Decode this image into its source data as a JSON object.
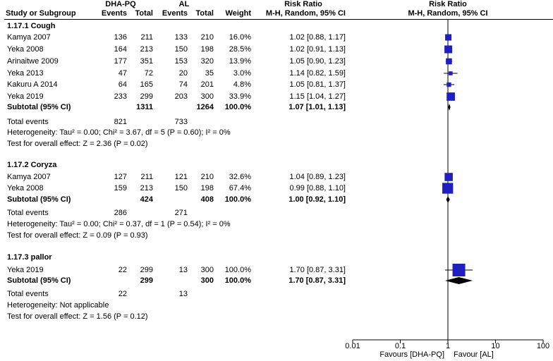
{
  "header": {
    "group1": "DHA-PQ",
    "group2": "AL",
    "rr_title": "Risk Ratio",
    "rr_plot_title": "Risk Ratio",
    "study_col": "Study or Subgroup",
    "events1": "Events",
    "total1": "Total",
    "events2": "Events",
    "total2": "Total",
    "weight": "Weight",
    "method": "M-H, Random, 95% CI",
    "method_plot": "M-H, Random, 95% CI"
  },
  "subgroups": [
    {
      "title": "1.17.1 Cough",
      "studies": [
        {
          "name": "Kamya 2007",
          "e1": "136",
          "t1": "211",
          "e2": "133",
          "t2": "210",
          "weight": "16.0%",
          "ci": "1.02 [0.88, 1.17]"
        },
        {
          "name": "Yeka 2008",
          "e1": "164",
          "t1": "213",
          "e2": "150",
          "t2": "198",
          "weight": "28.5%",
          "ci": "1.02 [0.91, 1.13]"
        },
        {
          "name": "Arinaitwe 2009",
          "e1": "177",
          "t1": "351",
          "e2": "153",
          "t2": "320",
          "weight": "13.9%",
          "ci": "1.05 [0.90, 1.23]"
        },
        {
          "name": "Yeka 2013",
          "e1": "47",
          "t1": "72",
          "e2": "20",
          "t2": "35",
          "weight": "3.0%",
          "ci": "1.14 [0.82, 1.59]"
        },
        {
          "name": "Kakuru A 2014",
          "e1": "64",
          "t1": "165",
          "e2": "74",
          "t2": "201",
          "weight": "4.8%",
          "ci": "1.05 [0.81, 1.37]"
        },
        {
          "name": "Yeka 2019",
          "e1": "233",
          "t1": "299",
          "e2": "203",
          "t2": "300",
          "weight": "33.9%",
          "ci": "1.15 [1.04, 1.27]"
        }
      ],
      "subtotal": {
        "label": "Subtotal (95% CI)",
        "t1": "1311",
        "t2": "1264",
        "weight": "100.0%",
        "ci": "1.07 [1.01, 1.13]"
      },
      "total_events": {
        "label": "Total events",
        "e1": "821",
        "e2": "733"
      },
      "heterogeneity": "Heterogeneity: Tau² = 0.00; Chi² = 3.67, df = 5 (P = 0.60); I² = 0%",
      "overall": "Test for overall effect: Z = 2.36 (P = 0.02)"
    },
    {
      "title": "1.17.2 Coryza",
      "studies": [
        {
          "name": "Kamya 2007",
          "e1": "127",
          "t1": "211",
          "e2": "121",
          "t2": "210",
          "weight": "32.6%",
          "ci": "1.04 [0.89, 1.23]"
        },
        {
          "name": "Yeka 2008",
          "e1": "159",
          "t1": "213",
          "e2": "150",
          "t2": "198",
          "weight": "67.4%",
          "ci": "0.99 [0.88, 1.10]"
        }
      ],
      "subtotal": {
        "label": "Subtotal (95% CI)",
        "t1": "424",
        "t2": "408",
        "weight": "100.0%",
        "ci": "1.00 [0.92, 1.10]"
      },
      "total_events": {
        "label": "Total events",
        "e1": "286",
        "e2": "271"
      },
      "heterogeneity": "Heterogeneity: Tau² = 0.00; Chi² = 0.37, df = 1 (P = 0.54); I² = 0%",
      "overall": "Test for overall effect: Z = 0.09 (P = 0.93)"
    },
    {
      "title": "1.17.3 pallor",
      "studies": [
        {
          "name": "Yeka 2019",
          "e1": "22",
          "t1": "299",
          "e2": "13",
          "t2": "300",
          "weight": "100.0%",
          "ci": "1.70 [0.87, 3.31]"
        }
      ],
      "subtotal": {
        "label": "Subtotal (95% CI)",
        "t1": "299",
        "t2": "300",
        "weight": "100.0%",
        "ci": "1.70 [0.87, 3.31]"
      },
      "total_events": {
        "label": "Total events",
        "e1": "22",
        "e2": "13"
      },
      "heterogeneity": "Heterogeneity: Not applicable",
      "overall": "Test for overall effect: Z = 1.56 (P = 0.12)"
    }
  ],
  "axis": {
    "ticks": [
      "0.01",
      "0.1",
      "1",
      "10",
      "100"
    ],
    "favours_left": "Favours [DHA-PQ]",
    "favours_right": "Favour [AL]"
  },
  "colors": {
    "square": "#1f1fbf",
    "diamond": "#000000",
    "line": "#000000"
  },
  "chart_data": {
    "type": "forest",
    "scale": "log",
    "xlim": [
      0.01,
      100
    ],
    "x_ticks": [
      0.01,
      0.1,
      1,
      10,
      100
    ],
    "null_line": 1,
    "subgroups": [
      {
        "name": "1.17.1 Cough",
        "studies": [
          {
            "name": "Kamya 2007",
            "rr": 1.02,
            "lo": 0.88,
            "hi": 1.17,
            "weight": 16.0
          },
          {
            "name": "Yeka 2008",
            "rr": 1.02,
            "lo": 0.91,
            "hi": 1.13,
            "weight": 28.5
          },
          {
            "name": "Arinaitwe 2009",
            "rr": 1.05,
            "lo": 0.9,
            "hi": 1.23,
            "weight": 13.9
          },
          {
            "name": "Yeka 2013",
            "rr": 1.14,
            "lo": 0.82,
            "hi": 1.59,
            "weight": 3.0
          },
          {
            "name": "Kakuru A 2014",
            "rr": 1.05,
            "lo": 0.81,
            "hi": 1.37,
            "weight": 4.8
          },
          {
            "name": "Yeka 2019",
            "rr": 1.15,
            "lo": 1.04,
            "hi": 1.27,
            "weight": 33.9
          }
        ],
        "pooled": {
          "rr": 1.07,
          "lo": 1.01,
          "hi": 1.13
        }
      },
      {
        "name": "1.17.2 Coryza",
        "studies": [
          {
            "name": "Kamya 2007",
            "rr": 1.04,
            "lo": 0.89,
            "hi": 1.23,
            "weight": 32.6
          },
          {
            "name": "Yeka 2008",
            "rr": 0.99,
            "lo": 0.88,
            "hi": 1.1,
            "weight": 67.4
          }
        ],
        "pooled": {
          "rr": 1.0,
          "lo": 0.92,
          "hi": 1.1
        }
      },
      {
        "name": "1.17.3 pallor",
        "studies": [
          {
            "name": "Yeka 2019",
            "rr": 1.7,
            "lo": 0.87,
            "hi": 3.31,
            "weight": 100.0
          }
        ],
        "pooled": {
          "rr": 1.7,
          "lo": 0.87,
          "hi": 3.31
        }
      }
    ]
  }
}
